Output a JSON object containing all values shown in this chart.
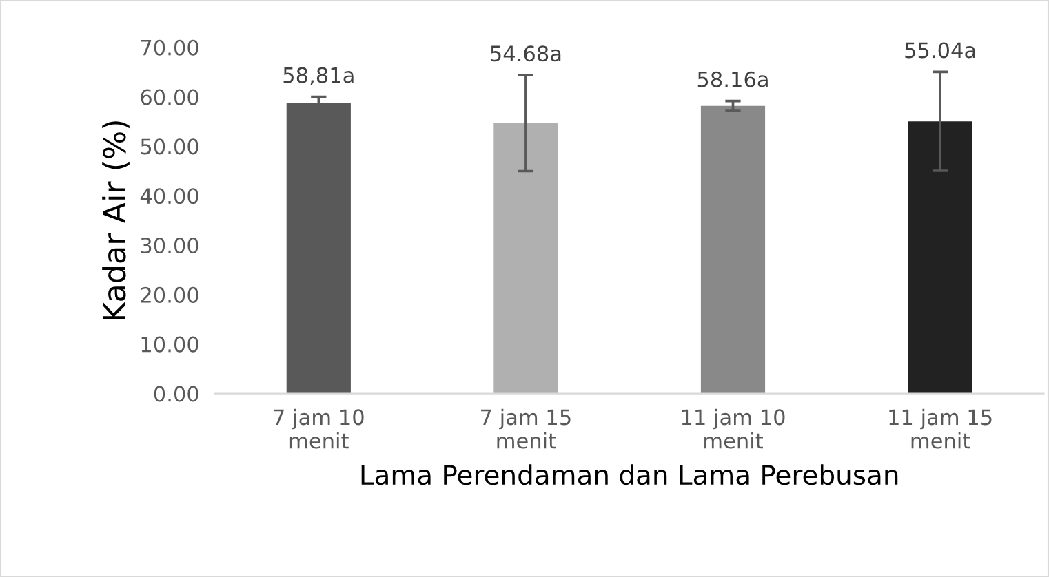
{
  "chart_data": {
    "type": "bar",
    "xlabel": "Lama Perendaman dan Lama Perebusan",
    "ylabel": "Kadar Air (%)",
    "categories": [
      "7 jam 10 menit",
      "7 jam 15 menit",
      "11 jam 10 menit",
      "11 jam 15 menit"
    ],
    "values": [
      58.81,
      54.68,
      58.16,
      55.04
    ],
    "colors": [
      "#595959",
      "#b0b0b0",
      "#898989",
      "#222222"
    ],
    "errors": [
      1.2,
      9.7,
      1.0,
      10.0
    ],
    "value_labels": [
      "58,81a",
      "54.68a",
      "58.16a",
      "55.04a"
    ],
    "ylim": [
      0,
      70
    ],
    "yticks": [
      {
        "value": 0,
        "label": "0.00"
      },
      {
        "value": 10,
        "label": "10.00"
      },
      {
        "value": 20,
        "label": "20.00"
      },
      {
        "value": 30,
        "label": "30.00"
      },
      {
        "value": 40,
        "label": "40.00"
      },
      {
        "value": 50,
        "label": "50.00"
      },
      {
        "value": 60,
        "label": "60.00"
      },
      {
        "value": 70,
        "label": "70.00"
      }
    ],
    "grid": false,
    "legend": false
  }
}
